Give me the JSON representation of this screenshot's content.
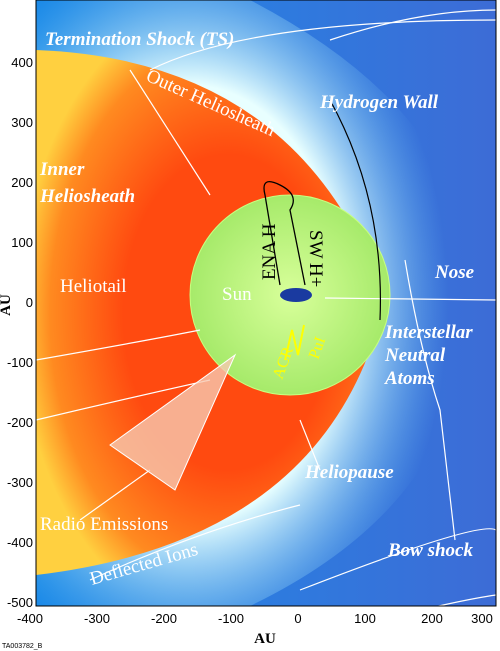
{
  "axes": {
    "x_label": "AU",
    "y_label": "AU",
    "x_ticks": [
      "-400",
      "-300",
      "-200",
      "-100",
      "0",
      "100",
      "200",
      "300"
    ],
    "y_ticks": [
      "400",
      "300",
      "200",
      "100",
      "0",
      "-100",
      "-200",
      "-300",
      "-400",
      "-500"
    ]
  },
  "labels": {
    "termination_shock": "Termination Shock (TS)",
    "outer_heliosheath": "Outer Heliosheath",
    "hydrogen_wall": "Hydrogen Wall",
    "inner_heliosheath": [
      "Inner",
      "Heliosheath"
    ],
    "heliotail": "Heliotail",
    "sun": "Sun",
    "ena_h": "ENA H",
    "sw_h": "SW H+",
    "nose": "Nose",
    "interstellar_neutral_atoms": [
      "Interstellar",
      "Neutral",
      "Atoms"
    ],
    "acr": "ACR",
    "pui": "PuI",
    "heliopause": "Heliopause",
    "radio_emissions": "Radio Emissions",
    "deflected_ions": "Deflected Ions",
    "bow_shock": "Bow shock"
  },
  "footer_code": "TA003782_B"
}
